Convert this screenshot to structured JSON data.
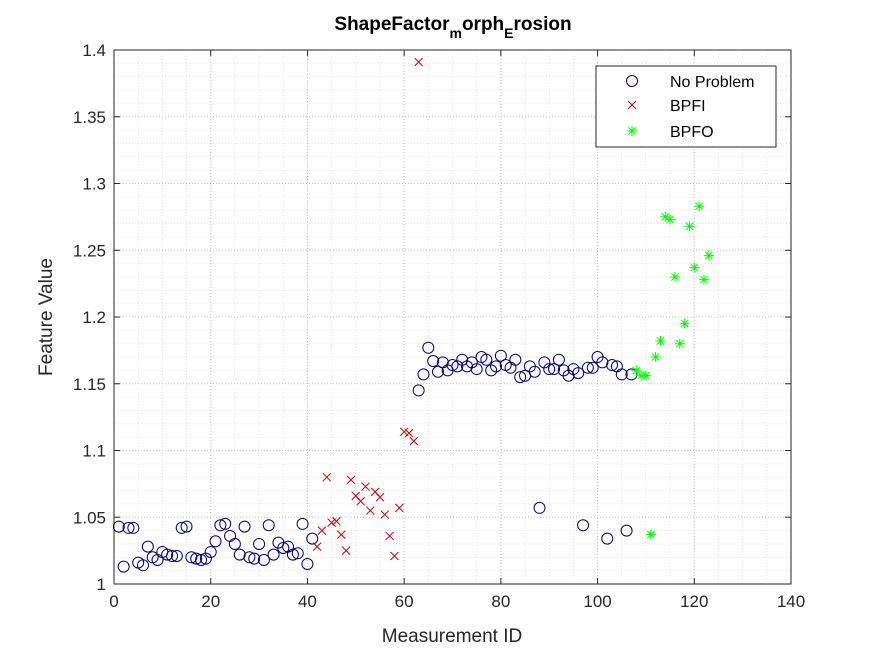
{
  "chart_data": {
    "type": "scatter",
    "title_parts": [
      "ShapeFactor",
      "m",
      "orph",
      "E",
      "rosion"
    ],
    "xlabel": "Measurement ID",
    "ylabel": "Feature Value",
    "xlim": [
      0,
      140
    ],
    "ylim": [
      1,
      1.4
    ],
    "xticks": [
      0,
      20,
      40,
      60,
      80,
      100,
      120,
      140
    ],
    "yticks": [
      1,
      1.05,
      1.1,
      1.15,
      1.2,
      1.25,
      1.3,
      1.35,
      1.4
    ],
    "xtick_labels": [
      "0",
      "20",
      "40",
      "60",
      "80",
      "100",
      "120",
      "140"
    ],
    "ytick_labels": [
      "1",
      "1.05",
      "1.1",
      "1.15",
      "1.2",
      "1.25",
      "1.3",
      "1.35",
      "1.4"
    ],
    "grid": "major and minor, dotted",
    "legend_position": "top-right",
    "series": [
      {
        "name": "No Problem",
        "marker": "circle",
        "color": "#000080",
        "points": [
          [
            1,
            1.043
          ],
          [
            2,
            1.013
          ],
          [
            3,
            1.042
          ],
          [
            4,
            1.042
          ],
          [
            5,
            1.016
          ],
          [
            6,
            1.014
          ],
          [
            7,
            1.028
          ],
          [
            8,
            1.02
          ],
          [
            9,
            1.018
          ],
          [
            10,
            1.024
          ],
          [
            11,
            1.022
          ],
          [
            12,
            1.021
          ],
          [
            13,
            1.021
          ],
          [
            14,
            1.042
          ],
          [
            15,
            1.043
          ],
          [
            16,
            1.02
          ],
          [
            17,
            1.019
          ],
          [
            18,
            1.018
          ],
          [
            19,
            1.019
          ],
          [
            20,
            1.024
          ],
          [
            21,
            1.032
          ],
          [
            22,
            1.044
          ],
          [
            23,
            1.045
          ],
          [
            24,
            1.036
          ],
          [
            25,
            1.03
          ],
          [
            26,
            1.022
          ],
          [
            27,
            1.043
          ],
          [
            28,
            1.02
          ],
          [
            29,
            1.019
          ],
          [
            30,
            1.03
          ],
          [
            31,
            1.018
          ],
          [
            32,
            1.044
          ],
          [
            33,
            1.022
          ],
          [
            34,
            1.031
          ],
          [
            35,
            1.027
          ],
          [
            36,
            1.028
          ],
          [
            37,
            1.022
          ],
          [
            38,
            1.023
          ],
          [
            39,
            1.045
          ],
          [
            40,
            1.015
          ],
          [
            41,
            1.034
          ],
          [
            63,
            1.145
          ],
          [
            64,
            1.157
          ],
          [
            65,
            1.177
          ],
          [
            66,
            1.167
          ],
          [
            67,
            1.159
          ],
          [
            68,
            1.166
          ],
          [
            69,
            1.16
          ],
          [
            70,
            1.164
          ],
          [
            71,
            1.163
          ],
          [
            72,
            1.168
          ],
          [
            73,
            1.163
          ],
          [
            74,
            1.166
          ],
          [
            75,
            1.161
          ],
          [
            76,
            1.17
          ],
          [
            77,
            1.168
          ],
          [
            78,
            1.16
          ],
          [
            79,
            1.163
          ],
          [
            80,
            1.171
          ],
          [
            81,
            1.164
          ],
          [
            82,
            1.162
          ],
          [
            83,
            1.168
          ],
          [
            84,
            1.155
          ],
          [
            85,
            1.156
          ],
          [
            86,
            1.163
          ],
          [
            87,
            1.159
          ],
          [
            88,
            1.057
          ],
          [
            89,
            1.166
          ],
          [
            90,
            1.161
          ],
          [
            91,
            1.161
          ],
          [
            92,
            1.168
          ],
          [
            93,
            1.16
          ],
          [
            94,
            1.156
          ],
          [
            95,
            1.161
          ],
          [
            96,
            1.158
          ],
          [
            97,
            1.044
          ],
          [
            98,
            1.162
          ],
          [
            99,
            1.162
          ],
          [
            100,
            1.17
          ],
          [
            101,
            1.166
          ],
          [
            102,
            1.034
          ],
          [
            103,
            1.164
          ],
          [
            104,
            1.163
          ],
          [
            105,
            1.157
          ],
          [
            106,
            1.04
          ],
          [
            107,
            1.157
          ]
        ]
      },
      {
        "name": "BPFI",
        "marker": "x",
        "color": "#cc0000",
        "points": [
          [
            42,
            1.028
          ],
          [
            43,
            1.04
          ],
          [
            44,
            1.08
          ],
          [
            45,
            1.046
          ],
          [
            46,
            1.047
          ],
          [
            47,
            1.037
          ],
          [
            48,
            1.025
          ],
          [
            49,
            1.078
          ],
          [
            50,
            1.066
          ],
          [
            51,
            1.062
          ],
          [
            52,
            1.073
          ],
          [
            53,
            1.055
          ],
          [
            54,
            1.069
          ],
          [
            55,
            1.065
          ],
          [
            56,
            1.052
          ],
          [
            57,
            1.036
          ],
          [
            58,
            1.021
          ],
          [
            59,
            1.057
          ],
          [
            60,
            1.114
          ],
          [
            61,
            1.113
          ],
          [
            62,
            1.107
          ],
          [
            63,
            1.391
          ]
        ]
      },
      {
        "name": "BPFO",
        "marker": "star",
        "color": "#00ff00",
        "points": [
          [
            108,
            1.16
          ],
          [
            109,
            1.156
          ],
          [
            110,
            1.156
          ],
          [
            111,
            1.037
          ],
          [
            112,
            1.17
          ],
          [
            113,
            1.182
          ],
          [
            114,
            1.275
          ],
          [
            115,
            1.273
          ],
          [
            116,
            1.23
          ],
          [
            117,
            1.18
          ],
          [
            118,
            1.195
          ],
          [
            119,
            1.268
          ],
          [
            120,
            1.237
          ],
          [
            121,
            1.283
          ],
          [
            122,
            1.228
          ],
          [
            123,
            1.246
          ]
        ]
      }
    ]
  }
}
